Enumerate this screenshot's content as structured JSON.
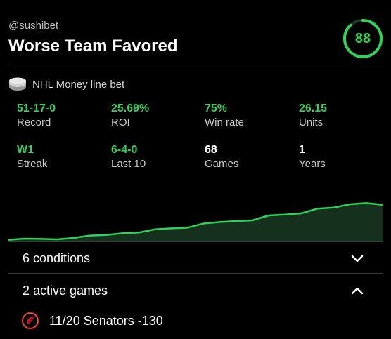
{
  "header": {
    "handle": "@sushibet",
    "title": "Worse Team Favored",
    "score": "88"
  },
  "bet_type": {
    "icon": "coin-stack-icon",
    "label": "NHL Money line bet"
  },
  "stats": [
    {
      "value": "51-17-0",
      "label": "Record",
      "color": "#30d158"
    },
    {
      "value": "25.69%",
      "label": "ROI",
      "color": "#30d158"
    },
    {
      "value": "75%",
      "label": "Win rate",
      "color": "#30d158"
    },
    {
      "value": "26.15",
      "label": "Units",
      "color": "#30d158"
    },
    {
      "value": "W1",
      "label": "Streak",
      "color": "#30d158"
    },
    {
      "value": "6-4-0",
      "label": "Last 10",
      "color": "#30d158"
    },
    {
      "value": "68",
      "label": "Games",
      "color": "#ffffff"
    },
    {
      "value": "1",
      "label": "Years",
      "color": "#ffffff"
    }
  ],
  "chart_data": {
    "type": "area",
    "values": [
      1.2,
      2.0,
      1.8,
      1.5,
      2.5,
      4.2,
      4.6,
      5.8,
      6.3,
      8.6,
      9.3,
      9.8,
      12.8,
      13.8,
      14.5,
      15.0,
      18.5,
      19.1,
      20.0,
      23.4,
      24.1,
      26.5,
      27.3,
      26.15
    ],
    "ylim": [
      0,
      40
    ],
    "line_color": "#30d158",
    "fill_color": "#15301c"
  },
  "accordion": {
    "conditions_label": "6 conditions",
    "games_label": "2 active games"
  },
  "games": [
    {
      "text": "11/20 Senators -130",
      "icon": "senators-logo-icon"
    }
  ],
  "colors": {
    "accent": "#30d158",
    "background": "#000000",
    "divider": "#3a3a3a"
  }
}
